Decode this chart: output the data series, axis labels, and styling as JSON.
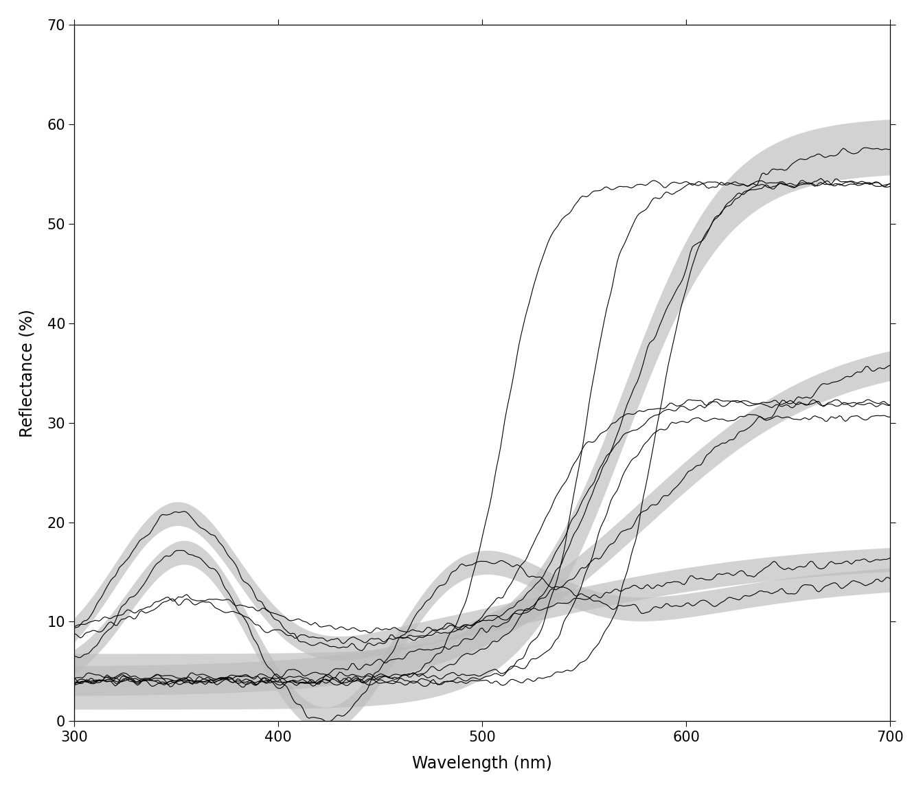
{
  "xlabel": "Wavelength (nm)",
  "ylabel": "Reflectance (%)",
  "xlim": [
    300,
    700
  ],
  "ylim": [
    0,
    70
  ],
  "xticks": [
    300,
    400,
    500,
    600,
    700
  ],
  "yticks": [
    0,
    10,
    20,
    30,
    40,
    50,
    60,
    70
  ],
  "background_color": "#ffffff",
  "plot_bg_color": "#ffffff",
  "line_color": "#000000",
  "band_color": "#bbbbbb",
  "band_alpha": 0.65,
  "line_width": 0.8,
  "xlabel_fontsize": 17,
  "ylabel_fontsize": 17,
  "tick_fontsize": 15
}
